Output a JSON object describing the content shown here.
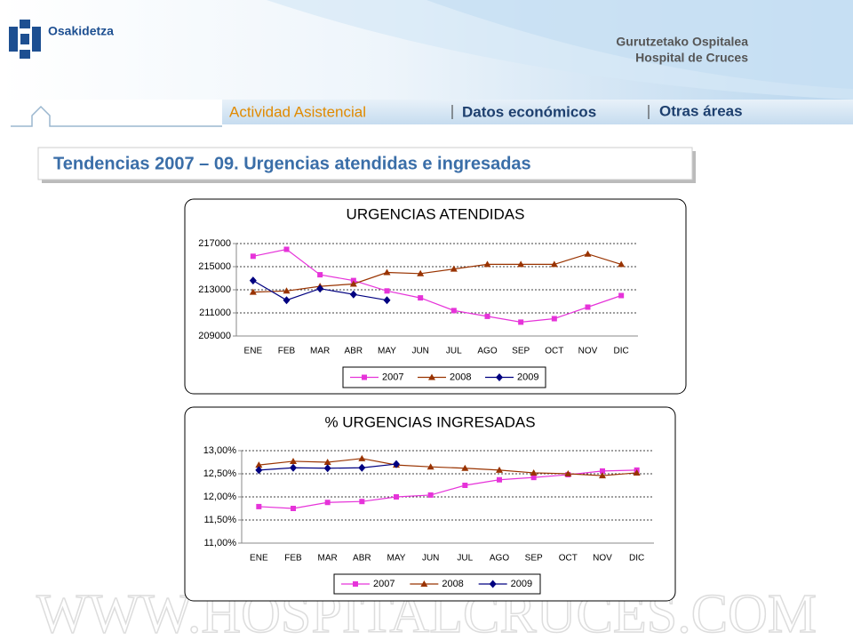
{
  "header": {
    "brand": "Osakidetza",
    "hospital_line1": "Gurutzetako Ospitalea",
    "hospital_line2": "Hospital de Cruces"
  },
  "nav": [
    "Actividad Asistencial",
    "Datos económicos",
    "Otras áreas"
  ],
  "page_title": "Tendencias 2007 – 09. Urgencias atendidas e ingresadas",
  "watermark": "WWW.HOSPITALCRUCES.COM",
  "chart_data": [
    {
      "type": "line",
      "title": "URGENCIAS ATENDIDAS",
      "categories": [
        "ENE",
        "FEB",
        "MAR",
        "ABR",
        "MAY",
        "JUN",
        "JUL",
        "AGO",
        "SEP",
        "OCT",
        "NOV",
        "DIC"
      ],
      "ylim": [
        209000,
        217000
      ],
      "yticks": [
        209000,
        211000,
        213000,
        215000,
        217000
      ],
      "grid": true,
      "series": [
        {
          "name": "2007",
          "color": "#e633d9",
          "marker": "square",
          "values": [
            215900,
            216500,
            214300,
            213800,
            212900,
            212300,
            211200,
            210700,
            210200,
            210500,
            211500,
            212500
          ]
        },
        {
          "name": "2008",
          "color": "#993300",
          "marker": "triangle",
          "values": [
            212800,
            212900,
            213300,
            213500,
            214500,
            214400,
            214800,
            215200,
            215200,
            215200,
            216100,
            215200
          ]
        },
        {
          "name": "2009",
          "color": "#000080",
          "marker": "diamond",
          "values": [
            213800,
            212100,
            213100,
            212600,
            212100,
            null,
            null,
            null,
            null,
            null,
            null,
            null
          ]
        }
      ]
    },
    {
      "type": "line",
      "title": "% URGENCIAS INGRESADAS",
      "categories": [
        "ENE",
        "FEB",
        "MAR",
        "ABR",
        "MAY",
        "JUN",
        "JUL",
        "AGO",
        "SEP",
        "OCT",
        "NOV",
        "DIC"
      ],
      "ylim": [
        11,
        13
      ],
      "yticks": [
        {
          "value": 11,
          "label": "11,00%"
        },
        {
          "value": 11.5,
          "label": "11,50%"
        },
        {
          "value": 12,
          "label": "12,00%"
        },
        {
          "value": 12.5,
          "label": "12,50%"
        },
        {
          "value": 13,
          "label": "13,00%"
        }
      ],
      "grid": true,
      "series": [
        {
          "name": "2007",
          "color": "#e633d9",
          "marker": "square",
          "values": [
            11.79,
            11.75,
            11.88,
            11.9,
            12.0,
            12.04,
            12.25,
            12.37,
            12.42,
            12.48,
            12.56,
            12.58
          ]
        },
        {
          "name": "2008",
          "color": "#993300",
          "marker": "triangle",
          "values": [
            12.69,
            12.77,
            12.75,
            12.83,
            12.69,
            12.65,
            12.62,
            12.58,
            12.52,
            12.5,
            12.46,
            12.52
          ]
        },
        {
          "name": "2009",
          "color": "#000080",
          "marker": "diamond",
          "values": [
            12.58,
            12.63,
            12.62,
            12.63,
            12.71,
            null,
            null,
            null,
            null,
            null,
            null,
            null
          ]
        }
      ]
    }
  ]
}
